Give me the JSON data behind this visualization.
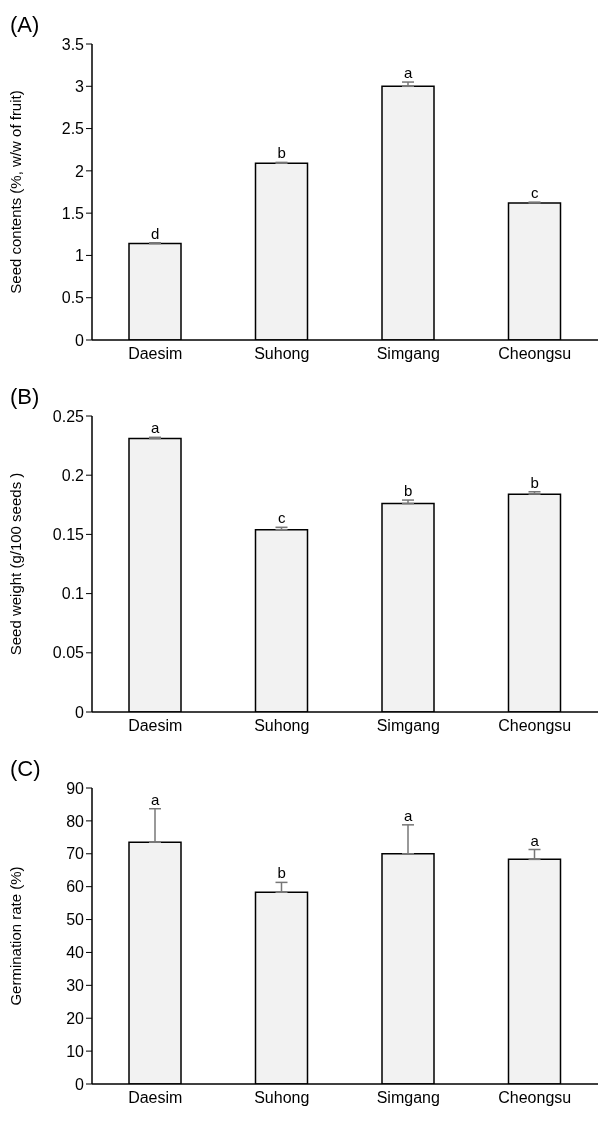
{
  "chart_data": [
    {
      "type": "bar",
      "title": "(A)",
      "ylabel": "Seed contents (%, w/w of fruit)",
      "categories": [
        "Daesim",
        "Suhong",
        "Simgang",
        "Cheongsu"
      ],
      "values": [
        1.14,
        2.09,
        3.0,
        1.62
      ],
      "errors": [
        [
          1.14,
          1.15
        ],
        [
          2.09,
          2.1
        ],
        [
          3.0,
          3.05
        ],
        [
          1.62,
          1.63
        ]
      ],
      "color": "#f2f2f2",
      "ylim": [
        0,
        3.5
      ],
      "yticks": [
        0,
        0.5,
        1,
        1.5,
        2,
        2.5,
        3,
        3.5
      ],
      "annotations": [
        {
          "text": "d",
          "x": "Daesim",
          "y": 1.15
        },
        {
          "text": "b",
          "x": "Suhong",
          "y": 2.1
        },
        {
          "text": "a",
          "x": "Simgang",
          "y": 3.05
        },
        {
          "text": "c",
          "x": "Cheongsu",
          "y": 1.63
        }
      ]
    },
    {
      "type": "bar",
      "title": "(B)",
      "ylabel": "Seed weight (g/100 seeds )",
      "categories": [
        "Daesim",
        "Suhong",
        "Simgang",
        "Cheongsu"
      ],
      "values": [
        0.231,
        0.154,
        0.176,
        0.184
      ],
      "errors": [
        [
          0.231,
          0.232
        ],
        [
          0.154,
          0.156
        ],
        [
          0.176,
          0.179
        ],
        [
          0.184,
          0.186
        ]
      ],
      "color": "#f2f2f2",
      "ylim": [
        0,
        0.25
      ],
      "yticks": [
        0,
        0.05,
        0.1,
        0.15,
        0.2,
        0.25
      ],
      "annotations": [
        {
          "text": "a",
          "x": "Daesim",
          "y": 0.232
        },
        {
          "text": "c",
          "x": "Suhong",
          "y": 0.156
        },
        {
          "text": "b",
          "x": "Simgang",
          "y": 0.179
        },
        {
          "text": "b",
          "x": "Cheongsu",
          "y": 0.186
        }
      ]
    },
    {
      "type": "bar",
      "title": "(C)",
      "ylabel": "Germination rate (%)",
      "categories": [
        "Daesim",
        "Suhong",
        "Simgang",
        "Cheongsu"
      ],
      "values": [
        73.5,
        58.3,
        70,
        68.3
      ],
      "errors": [
        [
          73.5,
          83.7
        ],
        [
          58.3,
          61.3
        ],
        [
          70,
          78.8
        ],
        [
          68.3,
          71.3
        ]
      ],
      "color": "#f2f2f2",
      "ylim": [
        0,
        90
      ],
      "yticks": [
        0,
        10,
        20,
        30,
        40,
        50,
        60,
        70,
        80,
        90
      ],
      "annotations": [
        {
          "text": "a",
          "x": "Daesim",
          "y": 83.7
        },
        {
          "text": "b",
          "x": "Suhong",
          "y": 61.3
        },
        {
          "text": "a",
          "x": "Simgang",
          "y": 78.8
        },
        {
          "text": "a",
          "x": "Cheongsu",
          "y": 71.3
        }
      ]
    }
  ]
}
